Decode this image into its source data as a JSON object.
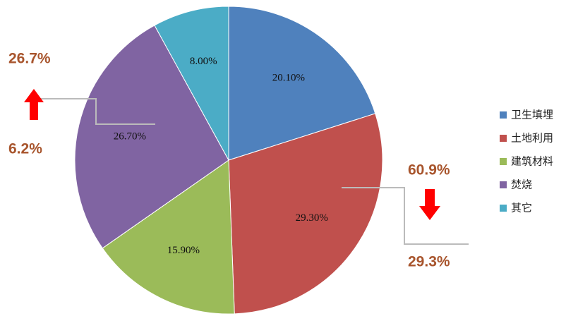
{
  "chart_data": {
    "type": "pie",
    "categories": [
      "卫生填埋",
      "土地利用",
      "建筑材料",
      "焚烧",
      "其它"
    ],
    "values": [
      20.1,
      29.3,
      15.9,
      26.7,
      8.0
    ],
    "value_labels": [
      "20.10%",
      "29.30%",
      "15.90%",
      "26.70%",
      "8.00%"
    ],
    "colors": [
      "#4f81bd",
      "#c0504d",
      "#9bbb59",
      "#8064a2",
      "#4bacc6"
    ],
    "legend": "right",
    "annotations": [
      "26.7%",
      "6.2%",
      "60.9%",
      "29.3%"
    ]
  }
}
